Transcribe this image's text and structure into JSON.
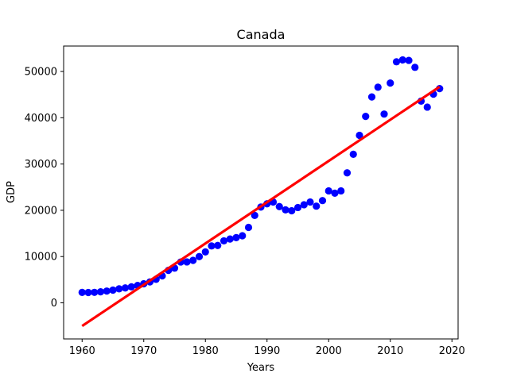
{
  "chart_data": {
    "type": "scatter",
    "title": "Canada",
    "xlabel": "Years",
    "ylabel": "GDP",
    "xlim": [
      1957,
      2021
    ],
    "ylim": [
      -7800,
      55500
    ],
    "xticks": [
      1960,
      1970,
      1980,
      1990,
      2000,
      2010,
      2020
    ],
    "yticks": [
      0,
      10000,
      20000,
      30000,
      40000,
      50000
    ],
    "grid": false,
    "point_color": "#0000ff",
    "line_color": "#ff0000",
    "points": {
      "x": [
        1960,
        1961,
        1962,
        1963,
        1964,
        1965,
        1966,
        1967,
        1968,
        1969,
        1970,
        1971,
        1972,
        1973,
        1974,
        1975,
        1976,
        1977,
        1978,
        1979,
        1980,
        1981,
        1982,
        1983,
        1984,
        1985,
        1986,
        1987,
        1988,
        1989,
        1990,
        1991,
        1992,
        1993,
        1994,
        1995,
        1996,
        1997,
        1998,
        1999,
        2000,
        2001,
        2002,
        2003,
        2004,
        2005,
        2006,
        2007,
        2008,
        2009,
        2010,
        2011,
        2012,
        2013,
        2014,
        2015,
        2016,
        2017,
        2018
      ],
      "y": [
        2260,
        2230,
        2270,
        2380,
        2550,
        2760,
        3030,
        3220,
        3460,
        3760,
        4120,
        4520,
        5080,
        5830,
        7020,
        7500,
        8830,
        8850,
        9180,
        10000,
        11000,
        12300,
        12400,
        13400,
        13800,
        14100,
        14500,
        16300,
        18900,
        20700,
        21400,
        21800,
        20800,
        20100,
        19900,
        20600,
        21200,
        21800,
        20900,
        22100,
        24200,
        23700,
        24200,
        28100,
        32100,
        36200,
        40300,
        44500,
        46600,
        40800,
        47500,
        52100,
        52500,
        52400,
        50900,
        43600,
        42300,
        45100,
        46300
      ]
    },
    "regression": {
      "x": [
        1960,
        2018
      ],
      "y": [
        -5000,
        46700
      ]
    }
  }
}
